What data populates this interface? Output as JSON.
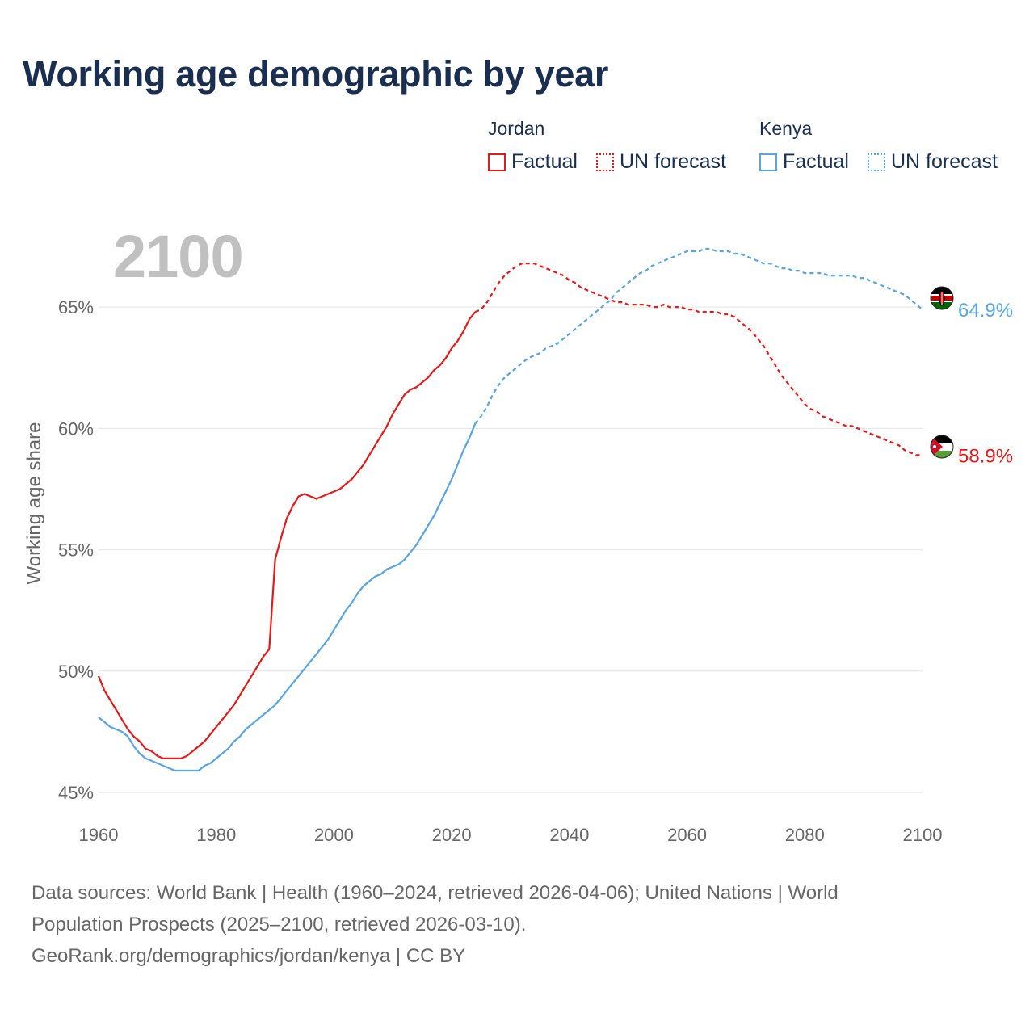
{
  "title": "Working age demographic by year",
  "year_label": "2100",
  "legend": {
    "groups": [
      {
        "country": "Jordan",
        "color": "#e31a1c",
        "factual": "Factual",
        "forecast": "UN forecast"
      },
      {
        "country": "Kenya",
        "color": "#5aa5e0",
        "factual": "Factual",
        "forecast": "UN forecast"
      }
    ]
  },
  "footer": {
    "line1": "Data sources: World Bank | Health (1960–2024, retrieved 2026-04-06); United Nations | World",
    "line2": "Population Prospects (2025–2100, retrieved 2026-03-10).",
    "line3": "GeoRank.org/demographics/jordan/kenya | CC BY"
  },
  "flags": {
    "jordan": "jordan-flag-icon",
    "kenya": "kenya-flag-icon"
  },
  "chart_data": {
    "type": "line",
    "ylabel": "Working age share",
    "xlim": [
      1960,
      2100
    ],
    "ylim": [
      45,
      68
    ],
    "x_ticks": [
      1960,
      1980,
      2000,
      2020,
      2040,
      2060,
      2080,
      2100
    ],
    "x_tick_labels": [
      "1960",
      "1980",
      "2000",
      "2020",
      "2040",
      "2060",
      "2080",
      "2100"
    ],
    "y_ticks": [
      45,
      50,
      55,
      60,
      65
    ],
    "y_tick_labels": [
      "45%",
      "50%",
      "55%",
      "60%",
      "65%"
    ],
    "factual_end_year": 2024,
    "series": [
      {
        "name": "Jordan",
        "color": "#e31a1c",
        "end_label": "58.9%",
        "x": [
          1960,
          1961,
          1962,
          1963,
          1964,
          1965,
          1966,
          1967,
          1968,
          1969,
          1970,
          1971,
          1972,
          1973,
          1974,
          1975,
          1976,
          1977,
          1978,
          1979,
          1980,
          1981,
          1982,
          1983,
          1984,
          1985,
          1986,
          1987,
          1988,
          1989,
          1990,
          1991,
          1992,
          1993,
          1994,
          1995,
          1996,
          1997,
          1998,
          1999,
          2000,
          2001,
          2002,
          2003,
          2004,
          2005,
          2006,
          2007,
          2008,
          2009,
          2010,
          2011,
          2012,
          2013,
          2014,
          2015,
          2016,
          2017,
          2018,
          2019,
          2020,
          2021,
          2022,
          2023,
          2024,
          2025,
          2026,
          2027,
          2028,
          2029,
          2030,
          2031,
          2032,
          2033,
          2034,
          2035,
          2036,
          2037,
          2038,
          2039,
          2040,
          2041,
          2042,
          2043,
          2044,
          2045,
          2046,
          2047,
          2048,
          2049,
          2050,
          2051,
          2052,
          2053,
          2054,
          2055,
          2056,
          2057,
          2058,
          2059,
          2060,
          2061,
          2062,
          2063,
          2064,
          2065,
          2066,
          2067,
          2068,
          2069,
          2070,
          2071,
          2072,
          2073,
          2074,
          2075,
          2076,
          2077,
          2078,
          2079,
          2080,
          2081,
          2082,
          2083,
          2084,
          2085,
          2086,
          2087,
          2088,
          2089,
          2090,
          2091,
          2092,
          2093,
          2094,
          2095,
          2096,
          2097,
          2098,
          2099,
          2100
        ],
        "values": [
          49.8,
          49.2,
          48.8,
          48.4,
          48.0,
          47.6,
          47.3,
          47.1,
          46.8,
          46.7,
          46.5,
          46.4,
          46.4,
          46.4,
          46.4,
          46.5,
          46.7,
          46.9,
          47.1,
          47.4,
          47.7,
          48.0,
          48.3,
          48.6,
          49.0,
          49.4,
          49.8,
          50.2,
          50.6,
          50.9,
          54.6,
          55.5,
          56.3,
          56.8,
          57.2,
          57.3,
          57.2,
          57.1,
          57.2,
          57.3,
          57.4,
          57.5,
          57.7,
          57.9,
          58.2,
          58.5,
          58.9,
          59.3,
          59.7,
          60.1,
          60.6,
          61.0,
          61.4,
          61.6,
          61.7,
          61.9,
          62.1,
          62.4,
          62.6,
          62.9,
          63.3,
          63.6,
          64.0,
          64.5,
          64.8,
          64.9,
          65.2,
          65.6,
          66.0,
          66.3,
          66.5,
          66.7,
          66.8,
          66.8,
          66.8,
          66.7,
          66.6,
          66.5,
          66.4,
          66.3,
          66.1,
          66.0,
          65.8,
          65.7,
          65.6,
          65.5,
          65.4,
          65.3,
          65.2,
          65.2,
          65.1,
          65.1,
          65.1,
          65.1,
          65.0,
          65.0,
          65.1,
          65.0,
          65.0,
          65.0,
          64.9,
          64.9,
          64.8,
          64.8,
          64.8,
          64.8,
          64.7,
          64.7,
          64.6,
          64.4,
          64.2,
          64.0,
          63.7,
          63.4,
          63.0,
          62.6,
          62.2,
          61.9,
          61.6,
          61.3,
          61.0,
          60.8,
          60.7,
          60.5,
          60.4,
          60.3,
          60.2,
          60.1,
          60.1,
          60.0,
          59.9,
          59.8,
          59.7,
          59.6,
          59.5,
          59.4,
          59.3,
          59.1,
          59.0,
          58.9,
          58.9
        ]
      },
      {
        "name": "Kenya",
        "color": "#5aa5e0",
        "end_label": "64.9%",
        "x": [
          1960,
          1961,
          1962,
          1963,
          1964,
          1965,
          1966,
          1967,
          1968,
          1969,
          1970,
          1971,
          1972,
          1973,
          1974,
          1975,
          1976,
          1977,
          1978,
          1979,
          1980,
          1981,
          1982,
          1983,
          1984,
          1985,
          1986,
          1987,
          1988,
          1989,
          1990,
          1991,
          1992,
          1993,
          1994,
          1995,
          1996,
          1997,
          1998,
          1999,
          2000,
          2001,
          2002,
          2003,
          2004,
          2005,
          2006,
          2007,
          2008,
          2009,
          2010,
          2011,
          2012,
          2013,
          2014,
          2015,
          2016,
          2017,
          2018,
          2019,
          2020,
          2021,
          2022,
          2023,
          2024,
          2025,
          2026,
          2027,
          2028,
          2029,
          2030,
          2031,
          2032,
          2033,
          2034,
          2035,
          2036,
          2037,
          2038,
          2039,
          2040,
          2041,
          2042,
          2043,
          2044,
          2045,
          2046,
          2047,
          2048,
          2049,
          2050,
          2051,
          2052,
          2053,
          2054,
          2055,
          2056,
          2057,
          2058,
          2059,
          2060,
          2061,
          2062,
          2063,
          2064,
          2065,
          2066,
          2067,
          2068,
          2069,
          2070,
          2071,
          2072,
          2073,
          2074,
          2075,
          2076,
          2077,
          2078,
          2079,
          2080,
          2081,
          2082,
          2083,
          2084,
          2085,
          2086,
          2087,
          2088,
          2089,
          2090,
          2091,
          2092,
          2093,
          2094,
          2095,
          2096,
          2097,
          2098,
          2099,
          2100
        ],
        "values": [
          48.1,
          47.9,
          47.7,
          47.6,
          47.5,
          47.3,
          46.9,
          46.6,
          46.4,
          46.3,
          46.2,
          46.1,
          46.0,
          45.9,
          45.9,
          45.9,
          45.9,
          45.9,
          46.1,
          46.2,
          46.4,
          46.6,
          46.8,
          47.1,
          47.3,
          47.6,
          47.8,
          48.0,
          48.2,
          48.4,
          48.6,
          48.9,
          49.2,
          49.5,
          49.8,
          50.1,
          50.4,
          50.7,
          51.0,
          51.3,
          51.7,
          52.1,
          52.5,
          52.8,
          53.2,
          53.5,
          53.7,
          53.9,
          54.0,
          54.2,
          54.3,
          54.4,
          54.6,
          54.9,
          55.2,
          55.6,
          56.0,
          56.4,
          56.9,
          57.4,
          57.9,
          58.5,
          59.1,
          59.6,
          60.2,
          60.5,
          60.9,
          61.4,
          61.8,
          62.1,
          62.3,
          62.5,
          62.7,
          62.9,
          63.0,
          63.1,
          63.3,
          63.4,
          63.5,
          63.7,
          63.9,
          64.1,
          64.3,
          64.5,
          64.7,
          64.9,
          65.1,
          65.3,
          65.6,
          65.8,
          66.0,
          66.2,
          66.4,
          66.5,
          66.7,
          66.8,
          66.9,
          67.0,
          67.1,
          67.2,
          67.3,
          67.3,
          67.3,
          67.4,
          67.4,
          67.3,
          67.3,
          67.3,
          67.2,
          67.2,
          67.1,
          67.0,
          66.9,
          66.8,
          66.8,
          66.7,
          66.6,
          66.6,
          66.5,
          66.5,
          66.4,
          66.4,
          66.4,
          66.4,
          66.3,
          66.3,
          66.3,
          66.3,
          66.3,
          66.2,
          66.2,
          66.1,
          66.0,
          65.9,
          65.8,
          65.7,
          65.6,
          65.5,
          65.3,
          65.1,
          64.9
        ]
      }
    ]
  }
}
